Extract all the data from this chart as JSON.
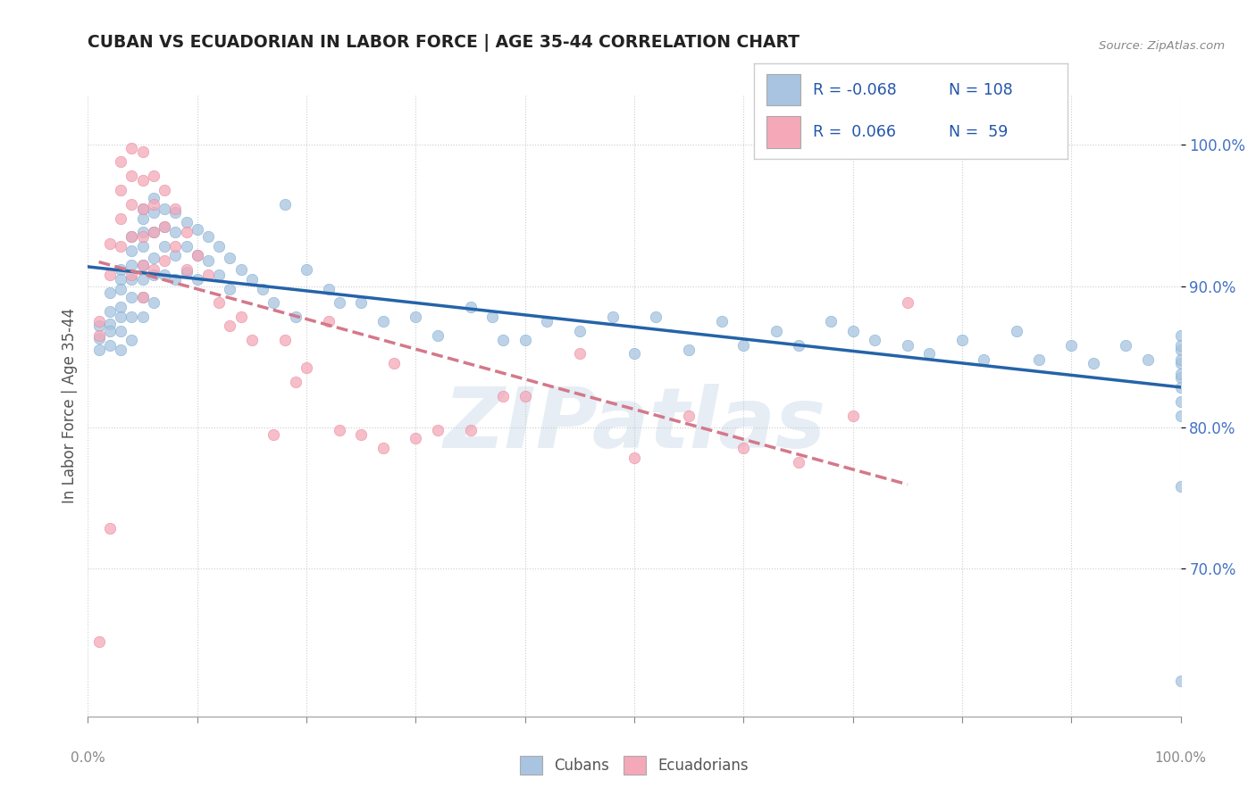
{
  "title": "CUBAN VS ECUADORIAN IN LABOR FORCE | AGE 35-44 CORRELATION CHART",
  "source_text": "Source: ZipAtlas.com",
  "ylabel": "In Labor Force | Age 35-44",
  "xmin": 0.0,
  "xmax": 1.0,
  "ymin": 0.595,
  "ymax": 1.035,
  "ytick_labels": [
    "70.0%",
    "80.0%",
    "90.0%",
    "100.0%"
  ],
  "ytick_values": [
    0.7,
    0.8,
    0.9,
    1.0
  ],
  "xtick_minor": [
    0.0,
    0.1,
    0.2,
    0.3,
    0.4,
    0.5,
    0.6,
    0.7,
    0.8,
    0.9,
    1.0
  ],
  "xtick_labels_shown": [
    "0.0%",
    "100.0%"
  ],
  "xtick_values_shown": [
    0.0,
    1.0
  ],
  "cuban_color": "#a8c4e0",
  "cuban_edge_color": "#7aaed0",
  "ecuadorian_color": "#f4a8b8",
  "ecuadorian_edge_color": "#e888a0",
  "cuban_line_color": "#2563a8",
  "ecuadorian_line_color": "#d4788a",
  "cuban_R": -0.068,
  "cuban_N": 108,
  "ecuadorian_R": 0.066,
  "ecuadorian_N": 59,
  "legend_label_cuban": "Cubans",
  "legend_label_ecuadorian": "Ecuadorians",
  "watermark_text": "ZIPatlas",
  "background_color": "#ffffff",
  "grid_color": "#cccccc",
  "title_color": "#222222",
  "axis_label_color": "#555555",
  "tick_color_y": "#4472c4",
  "tick_color_x": "#888888",
  "cuban_scatter_x": [
    0.01,
    0.01,
    0.01,
    0.02,
    0.02,
    0.02,
    0.02,
    0.02,
    0.03,
    0.03,
    0.03,
    0.03,
    0.03,
    0.03,
    0.03,
    0.04,
    0.04,
    0.04,
    0.04,
    0.04,
    0.04,
    0.04,
    0.05,
    0.05,
    0.05,
    0.05,
    0.05,
    0.05,
    0.05,
    0.05,
    0.06,
    0.06,
    0.06,
    0.06,
    0.06,
    0.06,
    0.07,
    0.07,
    0.07,
    0.07,
    0.08,
    0.08,
    0.08,
    0.08,
    0.09,
    0.09,
    0.09,
    0.1,
    0.1,
    0.1,
    0.11,
    0.11,
    0.12,
    0.12,
    0.13,
    0.13,
    0.14,
    0.15,
    0.16,
    0.17,
    0.18,
    0.19,
    0.2,
    0.22,
    0.23,
    0.25,
    0.27,
    0.3,
    0.32,
    0.35,
    0.37,
    0.38,
    0.4,
    0.42,
    0.45,
    0.48,
    0.5,
    0.52,
    0.55,
    0.58,
    0.6,
    0.63,
    0.65,
    0.68,
    0.7,
    0.72,
    0.75,
    0.77,
    0.8,
    0.82,
    0.85,
    0.87,
    0.9,
    0.92,
    0.95,
    0.97,
    1.0,
    1.0,
    1.0,
    1.0,
    1.0,
    1.0,
    1.0,
    1.0,
    1.0,
    1.0,
    1.0,
    1.0
  ],
  "cuban_scatter_y": [
    0.872,
    0.863,
    0.855,
    0.895,
    0.882,
    0.873,
    0.868,
    0.858,
    0.912,
    0.905,
    0.898,
    0.885,
    0.878,
    0.868,
    0.855,
    0.935,
    0.925,
    0.915,
    0.905,
    0.892,
    0.878,
    0.862,
    0.955,
    0.948,
    0.938,
    0.928,
    0.915,
    0.905,
    0.892,
    0.878,
    0.962,
    0.952,
    0.938,
    0.92,
    0.908,
    0.888,
    0.955,
    0.942,
    0.928,
    0.908,
    0.952,
    0.938,
    0.922,
    0.905,
    0.945,
    0.928,
    0.91,
    0.94,
    0.922,
    0.905,
    0.935,
    0.918,
    0.928,
    0.908,
    0.92,
    0.898,
    0.912,
    0.905,
    0.898,
    0.888,
    0.958,
    0.878,
    0.912,
    0.898,
    0.888,
    0.888,
    0.875,
    0.878,
    0.865,
    0.885,
    0.878,
    0.862,
    0.862,
    0.875,
    0.868,
    0.878,
    0.852,
    0.878,
    0.855,
    0.875,
    0.858,
    0.868,
    0.858,
    0.875,
    0.868,
    0.862,
    0.858,
    0.852,
    0.862,
    0.848,
    0.868,
    0.848,
    0.858,
    0.845,
    0.858,
    0.848,
    0.865,
    0.855,
    0.845,
    0.835,
    0.858,
    0.848,
    0.838,
    0.828,
    0.818,
    0.808,
    0.758,
    0.62
  ],
  "ecuadorian_scatter_x": [
    0.01,
    0.01,
    0.01,
    0.02,
    0.02,
    0.02,
    0.03,
    0.03,
    0.03,
    0.03,
    0.04,
    0.04,
    0.04,
    0.04,
    0.04,
    0.05,
    0.05,
    0.05,
    0.05,
    0.05,
    0.05,
    0.06,
    0.06,
    0.06,
    0.06,
    0.07,
    0.07,
    0.07,
    0.08,
    0.08,
    0.09,
    0.09,
    0.1,
    0.11,
    0.12,
    0.13,
    0.14,
    0.15,
    0.17,
    0.19,
    0.22,
    0.25,
    0.28,
    0.32,
    0.35,
    0.4,
    0.45,
    0.5,
    0.55,
    0.6,
    0.65,
    0.7,
    0.75,
    0.18,
    0.2,
    0.23,
    0.27,
    0.3,
    0.38
  ],
  "ecuadorian_scatter_y": [
    0.875,
    0.865,
    0.648,
    0.93,
    0.908,
    0.728,
    0.988,
    0.968,
    0.948,
    0.928,
    0.998,
    0.978,
    0.958,
    0.935,
    0.908,
    0.995,
    0.975,
    0.955,
    0.935,
    0.915,
    0.892,
    0.978,
    0.958,
    0.938,
    0.912,
    0.968,
    0.942,
    0.918,
    0.955,
    0.928,
    0.938,
    0.912,
    0.922,
    0.908,
    0.888,
    0.872,
    0.878,
    0.862,
    0.795,
    0.832,
    0.875,
    0.795,
    0.845,
    0.798,
    0.798,
    0.822,
    0.852,
    0.778,
    0.808,
    0.785,
    0.775,
    0.808,
    0.888,
    0.862,
    0.842,
    0.798,
    0.785,
    0.792,
    0.822
  ]
}
